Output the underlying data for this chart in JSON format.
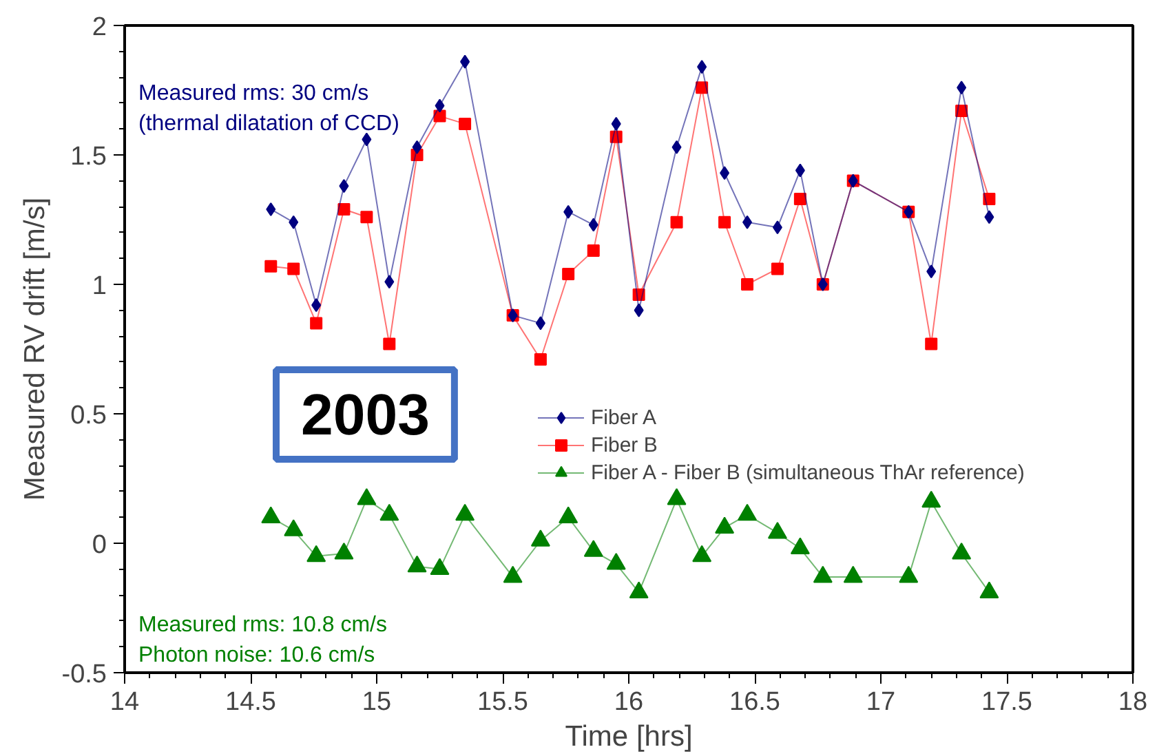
{
  "chart_data": {
    "type": "line",
    "xlabel": "Time [hrs]",
    "ylabel": "Measured RV drift [m/s]",
    "x": [
      14.58,
      14.67,
      14.76,
      14.87,
      14.96,
      15.05,
      15.16,
      15.25,
      15.35,
      15.54,
      15.65,
      15.76,
      15.86,
      15.95,
      16.04,
      16.19,
      16.29,
      16.38,
      16.47,
      16.59,
      16.68,
      16.77,
      16.89,
      17.11,
      17.2,
      17.32,
      17.43
    ],
    "series": [
      {
        "name": "Fiber A",
        "color": "#000080",
        "marker": "diamond",
        "values": [
          1.29,
          1.24,
          0.92,
          1.38,
          1.56,
          1.01,
          1.53,
          1.69,
          1.86,
          0.88,
          0.85,
          1.28,
          1.23,
          1.62,
          0.9,
          1.53,
          1.84,
          1.43,
          1.24,
          1.22,
          1.44,
          1.0,
          1.4,
          1.28,
          1.05,
          1.76,
          1.26
        ]
      },
      {
        "name": "Fiber B",
        "color": "#ff0000",
        "marker": "square",
        "values": [
          1.07,
          1.06,
          0.85,
          1.29,
          1.26,
          0.77,
          1.5,
          1.65,
          1.62,
          0.88,
          0.71,
          1.04,
          1.13,
          1.57,
          0.96,
          1.24,
          1.76,
          1.24,
          1.0,
          1.06,
          1.33,
          1.0,
          1.4,
          1.28,
          0.77,
          1.67,
          1.33
        ]
      },
      {
        "name": "Fiber A - Fiber B (simultaneous ThAr reference)",
        "color": "#008000",
        "marker": "triangle",
        "values": [
          0.1,
          0.05,
          -0.05,
          -0.04,
          0.17,
          0.11,
          -0.09,
          -0.1,
          0.11,
          -0.13,
          0.01,
          0.1,
          -0.03,
          -0.08,
          -0.19,
          0.17,
          -0.05,
          0.06,
          0.11,
          0.04,
          -0.02,
          -0.13,
          -0.13,
          -0.13,
          0.16,
          -0.04,
          -0.19
        ]
      }
    ],
    "xlim": [
      14,
      18
    ],
    "ylim": [
      -0.5,
      2
    ],
    "xticks": [
      14,
      14.5,
      15,
      15.5,
      16,
      16.5,
      17,
      17.5,
      18
    ],
    "yticks": [
      -0.5,
      0,
      0.5,
      1,
      1.5,
      2
    ],
    "annotations": [
      "Measured rms:  30 cm/s",
      "(thermal dilatation of CCD)",
      "Measured rms:  10.8 cm/s",
      "Photon noise:    10.6 cm/s",
      "2003"
    ],
    "legend": "right",
    "grid": false,
    "line_style": "solid"
  }
}
